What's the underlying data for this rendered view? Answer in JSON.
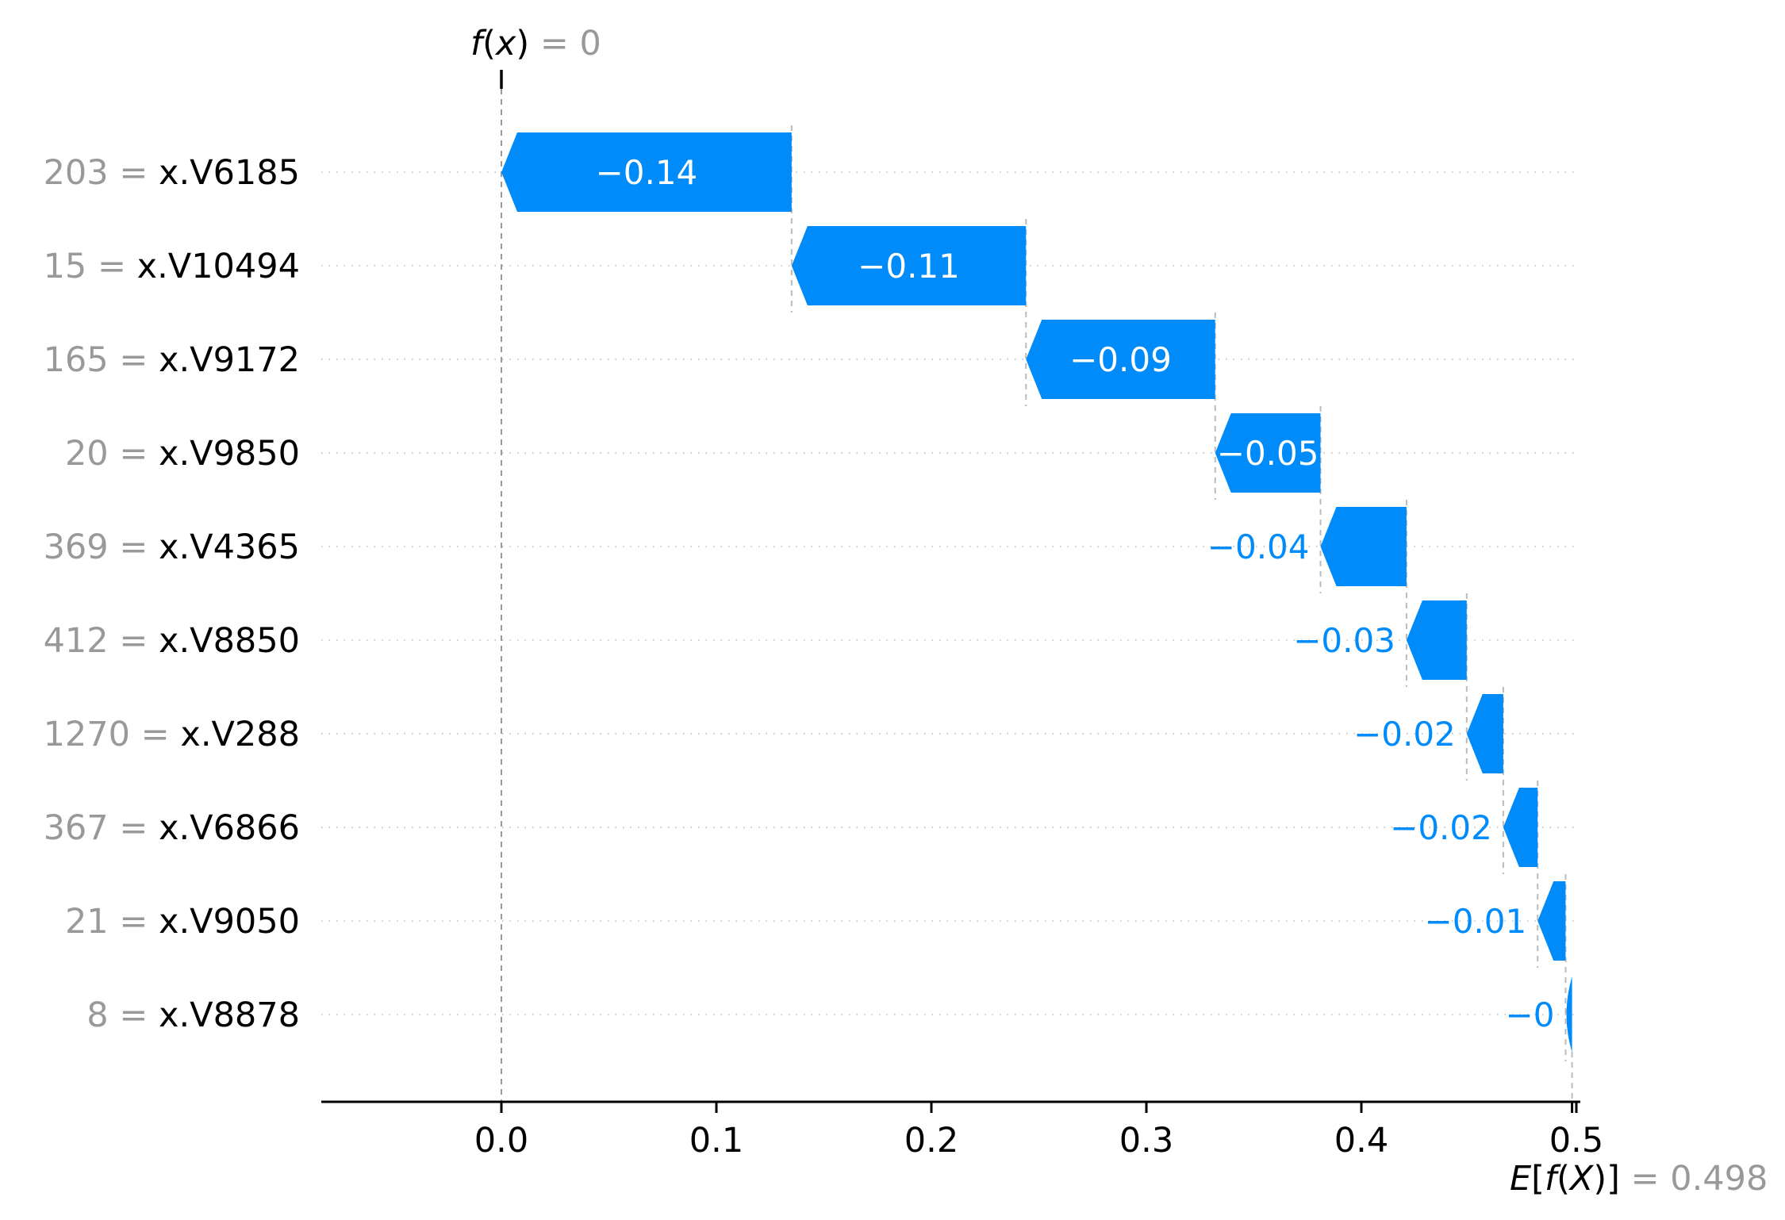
{
  "chart_data": {
    "type": "bar",
    "subtype": "shap-waterfall",
    "title": "",
    "fx_annotation": {
      "math": "f(x)",
      "suffix": " = 0"
    },
    "base_annotation": {
      "math": "E[f(X)]",
      "suffix": " = 0.498"
    },
    "fx_value": 0.0,
    "base_value": 0.498,
    "xlim": [
      -0.084,
      0.502
    ],
    "grid": "horizontal-dotted",
    "legend": "none",
    "x_ticks": [
      {
        "value": 0.0,
        "label": "0.0"
      },
      {
        "value": 0.1,
        "label": "0.1"
      },
      {
        "value": 0.2,
        "label": "0.2"
      },
      {
        "value": 0.3,
        "label": "0.3"
      },
      {
        "value": 0.4,
        "label": "0.4"
      },
      {
        "value": 0.5,
        "label": "0.5"
      }
    ],
    "features": [
      {
        "value": "203",
        "name": "x.V6185",
        "sep": " = ",
        "label": "−0.14",
        "contribution": -0.135,
        "from": 0.135,
        "to": 0.0,
        "label_placement": "inside"
      },
      {
        "value": "15",
        "name": "x.V10494",
        "sep": " = ",
        "label": "−0.11",
        "contribution": -0.109,
        "from": 0.244,
        "to": 0.135,
        "label_placement": "inside"
      },
      {
        "value": "165",
        "name": "x.V9172",
        "sep": " = ",
        "label": "−0.09",
        "contribution": -0.088,
        "from": 0.332,
        "to": 0.244,
        "label_placement": "inside"
      },
      {
        "value": "20",
        "name": "x.V9850",
        "sep": " = ",
        "label": "−0.05",
        "contribution": -0.049,
        "from": 0.381,
        "to": 0.332,
        "label_placement": "inside"
      },
      {
        "value": "369",
        "name": "x.V4365",
        "sep": " = ",
        "label": "−0.04",
        "contribution": -0.04,
        "from": 0.421,
        "to": 0.381,
        "label_placement": "outside"
      },
      {
        "value": "412",
        "name": "x.V8850",
        "sep": " = ",
        "label": "−0.03",
        "contribution": -0.028,
        "from": 0.449,
        "to": 0.421,
        "label_placement": "outside"
      },
      {
        "value": "1270",
        "name": "x.V288",
        "sep": " = ",
        "label": "−0.02",
        "contribution": -0.017,
        "from": 0.466,
        "to": 0.449,
        "label_placement": "outside"
      },
      {
        "value": "367",
        "name": "x.V6866",
        "sep": " = ",
        "label": "−0.02",
        "contribution": -0.016,
        "from": 0.482,
        "to": 0.466,
        "label_placement": "outside"
      },
      {
        "value": "21",
        "name": "x.V9050",
        "sep": " = ",
        "label": "−0.01",
        "contribution": -0.013,
        "from": 0.495,
        "to": 0.482,
        "label_placement": "outside"
      },
      {
        "value": "8",
        "name": "x.V8878",
        "sep": " = ",
        "label": "−0",
        "contribution": -0.003,
        "from": 0.498,
        "to": 0.495,
        "label_placement": "outside"
      }
    ],
    "colors": {
      "negative_bar": "#008bfb",
      "inside_label": "#ffffff",
      "outside_label": "#008bfb",
      "feature_value_text": "#999999",
      "feature_name_text": "#000000",
      "tick_text": "#000000",
      "annotation_math_text": "#000000",
      "annotation_suffix_text": "#999999",
      "gridline": "#cdcdcd",
      "connector": "#bbbbbb",
      "fx_line": "#999999",
      "axis": "#000000",
      "background": "#ffffff"
    }
  }
}
